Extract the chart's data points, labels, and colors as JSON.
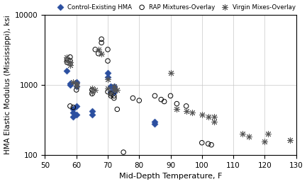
{
  "control_x": [
    57,
    58,
    58,
    59,
    59,
    59,
    60,
    60,
    60,
    60,
    65,
    65,
    70,
    70,
    71,
    71,
    72,
    72,
    72,
    85,
    85
  ],
  "control_y": [
    1600,
    1050,
    1000,
    450,
    400,
    350,
    1100,
    950,
    500,
    380,
    420,
    380,
    1500,
    1300,
    950,
    800,
    950,
    850,
    800,
    300,
    280
  ],
  "rap_x": [
    57,
    57,
    58,
    58,
    58,
    59,
    60,
    65,
    65,
    66,
    67,
    68,
    68,
    70,
    70,
    70,
    71,
    71,
    72,
    72,
    73,
    75,
    78,
    80,
    85,
    87,
    88,
    90,
    92,
    95,
    100,
    102,
    103
  ],
  "rap_y": [
    2300,
    2100,
    2500,
    2200,
    500,
    480,
    850,
    850,
    750,
    3200,
    2800,
    4500,
    4000,
    3200,
    2200,
    800,
    750,
    700,
    700,
    650,
    450,
    110,
    650,
    600,
    700,
    620,
    580,
    700,
    540,
    500,
    150,
    145,
    140
  ],
  "virgin_x": [
    57,
    57,
    58,
    58,
    59,
    60,
    60,
    65,
    65,
    66,
    67,
    68,
    70,
    70,
    71,
    72,
    72,
    73,
    90,
    92,
    95,
    97,
    100,
    102,
    104,
    104,
    113,
    115,
    120,
    121,
    128
  ],
  "virgin_y": [
    2500,
    2200,
    2100,
    1900,
    1100,
    1050,
    950,
    900,
    800,
    850,
    3200,
    2800,
    1200,
    900,
    750,
    950,
    850,
    850,
    1500,
    450,
    420,
    400,
    380,
    350,
    350,
    300,
    200,
    185,
    155,
    200,
    165
  ],
  "xlim": [
    50,
    130
  ],
  "ylim": [
    100,
    10000
  ],
  "xticks": [
    50,
    60,
    70,
    80,
    90,
    100,
    110,
    120,
    130
  ],
  "yticks": [
    100,
    1000,
    10000
  ],
  "ytick_labels": [
    "100",
    "1000",
    "10000"
  ],
  "xlabel": "Mid-Depth Temperature, F",
  "ylabel": "HMA Elastic Modulus (Mississippi), ksi",
  "control_label": "Control-Existing HMA",
  "rap_label": "RAP Mixtures-Overlay",
  "virgin_label": "Virgin Mixes-Overlay",
  "control_color": "#2b4fa0",
  "rap_color": "#000000",
  "virgin_color": "#555555",
  "bg_color": "#ffffff",
  "grid_color": "#c8c8c8"
}
